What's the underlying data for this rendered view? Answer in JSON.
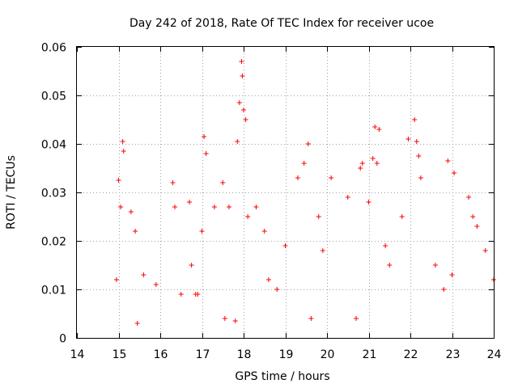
{
  "chart_data": {
    "type": "scatter",
    "title": "Day 242 of 2018, Rate Of TEC Index for receiver ucoe",
    "xlabel": "GPS time / hours",
    "ylabel": "ROTI / TECUs",
    "xlim": [
      14,
      24
    ],
    "ylim": [
      0,
      0.06
    ],
    "x_ticks": [
      "14",
      "15",
      "16",
      "17",
      "18",
      "19",
      "20",
      "21",
      "22",
      "23",
      "24"
    ],
    "y_ticks": [
      "0",
      "0.01",
      "0.02",
      "0.03",
      "0.04",
      "0.05",
      "0.06"
    ],
    "grid": true,
    "marker": "+",
    "series": [
      {
        "name": "ROTI",
        "color": "#ff0000",
        "x": [
          14.95,
          15.0,
          15.1,
          15.12,
          15.05,
          15.3,
          15.45,
          15.4,
          15.6,
          15.9,
          16.3,
          16.35,
          16.5,
          16.7,
          16.75,
          16.85,
          16.9,
          17.05,
          17.1,
          17.0,
          17.3,
          17.5,
          17.55,
          17.65,
          17.8,
          17.85,
          17.9,
          17.95,
          17.97,
          18.0,
          18.05,
          18.1,
          18.3,
          18.5,
          18.6,
          18.8,
          19.0,
          19.3,
          19.45,
          19.55,
          19.62,
          19.8,
          19.9,
          20.1,
          20.5,
          20.7,
          20.8,
          20.85,
          21.0,
          21.1,
          21.15,
          21.2,
          21.25,
          21.4,
          21.5,
          21.8,
          21.95,
          22.1,
          22.15,
          22.2,
          22.25,
          22.6,
          22.8,
          22.9,
          23.0,
          23.05,
          23.4,
          23.5,
          23.6,
          23.8,
          24.0
        ],
        "y": [
          0.012,
          0.0325,
          0.0405,
          0.0385,
          0.027,
          0.026,
          0.003,
          0.022,
          0.013,
          0.011,
          0.032,
          0.027,
          0.009,
          0.028,
          0.015,
          0.009,
          0.009,
          0.0415,
          0.038,
          0.022,
          0.027,
          0.032,
          0.004,
          0.027,
          0.0035,
          0.0405,
          0.0485,
          0.057,
          0.054,
          0.047,
          0.045,
          0.025,
          0.027,
          0.022,
          0.012,
          0.01,
          0.019,
          0.033,
          0.036,
          0.04,
          0.004,
          0.025,
          0.018,
          0.033,
          0.029,
          0.004,
          0.035,
          0.036,
          0.028,
          0.037,
          0.0435,
          0.036,
          0.043,
          0.019,
          0.015,
          0.025,
          0.041,
          0.045,
          0.0405,
          0.0375,
          0.033,
          0.015,
          0.01,
          0.0365,
          0.013,
          0.034,
          0.029,
          0.025,
          0.023,
          0.018,
          0.012
        ]
      }
    ]
  }
}
